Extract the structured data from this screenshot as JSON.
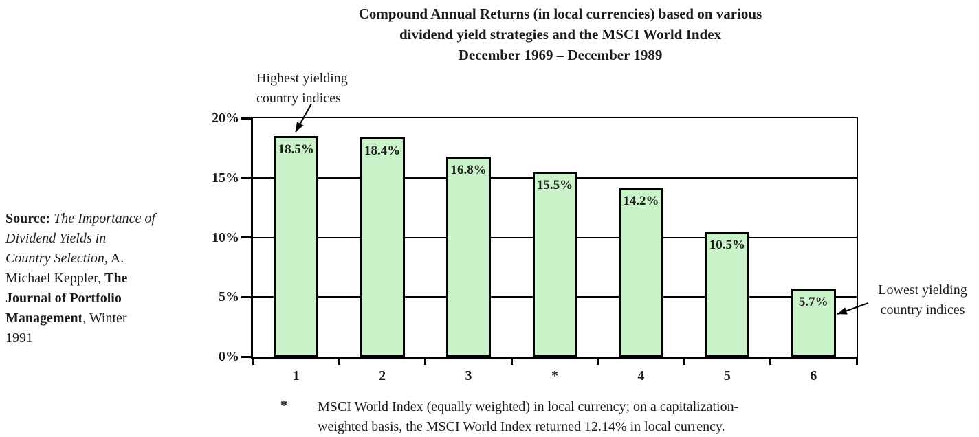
{
  "title": {
    "line1": "Compound Annual Returns (in local currencies) based on various",
    "line2": "dividend yield strategies and the MSCI World Index",
    "line3": "December 1969 – December 1989"
  },
  "source": {
    "label": "Source:",
    "work": " The Importance of\nDividend Yields in\nCountry Selection,",
    "middle": " A.\nMichael Keppler, ",
    "journal": "The\nJournal of Portfolio\nManagement",
    "tail": ", Winter\n1991"
  },
  "annotations": {
    "highest": "Highest yielding\ncountry indices",
    "lowest": "Lowest yielding\ncountry indices"
  },
  "footnote": {
    "marker": "*",
    "text": "MSCI World Index (equally weighted) in local currency; on a capitalization-\nweighted basis, the MSCI World Index returned 12.14% in local currency."
  },
  "chart_data": {
    "type": "bar",
    "title": "Compound Annual Returns (in local currencies) based on various dividend yield strategies and the MSCI World Index, December 1969 – December 1989",
    "categories": [
      "1",
      "2",
      "3",
      "*",
      "4",
      "5",
      "6"
    ],
    "values": [
      18.5,
      18.4,
      16.8,
      15.5,
      14.2,
      10.5,
      5.7
    ],
    "bar_labels": [
      "18.5%",
      "18.4%",
      "16.8%",
      "15.5%",
      "14.2%",
      "10.5%",
      "5.7%"
    ],
    "xlabel": "",
    "ylabel": "",
    "ylim": [
      0,
      20
    ],
    "y_tick_values": [
      0,
      5,
      10,
      15,
      20
    ],
    "y_tick_labels": [
      "0%",
      "5%",
      "10%",
      "15%",
      "20%"
    ],
    "grid": true,
    "legend": false,
    "bar_fill": "#cbf3ca",
    "bar_border": "#000000"
  }
}
